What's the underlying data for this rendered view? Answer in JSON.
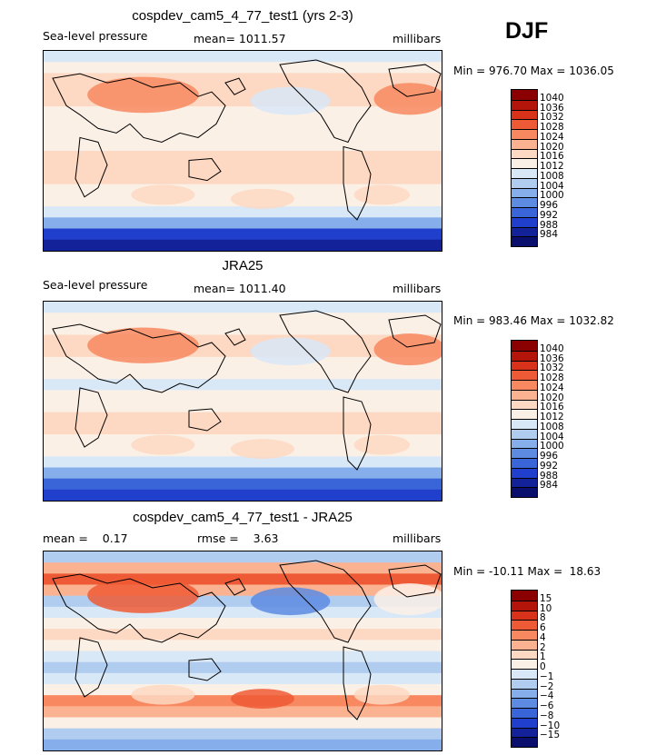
{
  "season": "DJF",
  "chart_data": [
    {
      "type": "heatmap",
      "title": "cospdev_cam5_4_77_test1 (yrs 2-3)",
      "variable": "Sea-level pressure",
      "mean_label": "mean= 1011.57",
      "units": "millibars",
      "min_max_label": "Min = 976.70 Max = 1036.05",
      "min": 976.7,
      "max": 1036.05,
      "colorbar_labels": [
        "1040",
        "1036",
        "1032",
        "1028",
        "1024",
        "1020",
        "1016",
        "1012",
        "1008",
        "1004",
        "1000",
        "996",
        "992",
        "988",
        "984"
      ],
      "colorbar_colors": [
        "#8b0000",
        "#b3150a",
        "#d8321a",
        "#ee5a35",
        "#f7885f",
        "#fbb291",
        "#fdd8c2",
        "#fbf0e6",
        "#d9e8f7",
        "#b0cdf0",
        "#86aeea",
        "#5d8be2",
        "#3a65d9",
        "#1f3fcc",
        "#14229a",
        "#0a0f6e"
      ],
      "lat_profile": [
        984,
        990,
        1001,
        1008,
        1012,
        1014,
        1016,
        1017,
        1016,
        1013,
        1012,
        1012,
        1013,
        1016,
        1019,
        1016,
        1012,
        1010
      ]
    },
    {
      "type": "heatmap",
      "title": "JRA25",
      "variable": "Sea-level pressure",
      "mean_label": "mean= 1011.40",
      "units": "millibars",
      "min_max_label": "Min = 983.46 Max = 1032.82",
      "min": 983.46,
      "max": 1032.82,
      "colorbar_labels": [
        "1040",
        "1036",
        "1032",
        "1028",
        "1024",
        "1020",
        "1016",
        "1012",
        "1008",
        "1004",
        "1000",
        "996",
        "992",
        "988",
        "984"
      ],
      "colorbar_colors": [
        "#8b0000",
        "#b3150a",
        "#d8321a",
        "#ee5a35",
        "#f7885f",
        "#fbb291",
        "#fdd8c2",
        "#fbf0e6",
        "#d9e8f7",
        "#b0cdf0",
        "#86aeea",
        "#5d8be2",
        "#3a65d9",
        "#1f3fcc",
        "#14229a",
        "#0a0f6e"
      ],
      "lat_profile": [
        988,
        994,
        1002,
        1008,
        1012,
        1015,
        1017,
        1016,
        1014,
        1012,
        1011,
        1012,
        1014,
        1017,
        1018,
        1015,
        1012,
        1010
      ]
    },
    {
      "type": "heatmap",
      "title": "cospdev_cam5_4_77_test1 - JRA25",
      "mean_label": "mean =    0.17",
      "rmse_label": "rmse =    3.63",
      "units": "millibars",
      "min_max_label": "Min = -10.11 Max =  18.63",
      "min": -10.11,
      "max": 18.63,
      "colorbar_labels": [
        "15",
        "10",
        "8",
        "6",
        "4",
        "2",
        "1",
        "0",
        "−1",
        "−2",
        "−4",
        "−6",
        "−8",
        "−10",
        "−15"
      ],
      "colorbar_colors": [
        "#8b0000",
        "#b3150a",
        "#d8321a",
        "#ee5a35",
        "#f7885f",
        "#fbb291",
        "#fdd8c2",
        "#fbf0e6",
        "#d9e8f7",
        "#b0cdf0",
        "#86aeea",
        "#5d8be2",
        "#3a65d9",
        "#1f3fcc",
        "#14229a",
        "#0a0f6e"
      ],
      "lat_profile": [
        -4,
        -2,
        0,
        2,
        4,
        0,
        -1,
        -2,
        -1,
        0,
        1,
        0,
        -1,
        -2,
        2,
        6,
        2,
        -2
      ]
    }
  ]
}
